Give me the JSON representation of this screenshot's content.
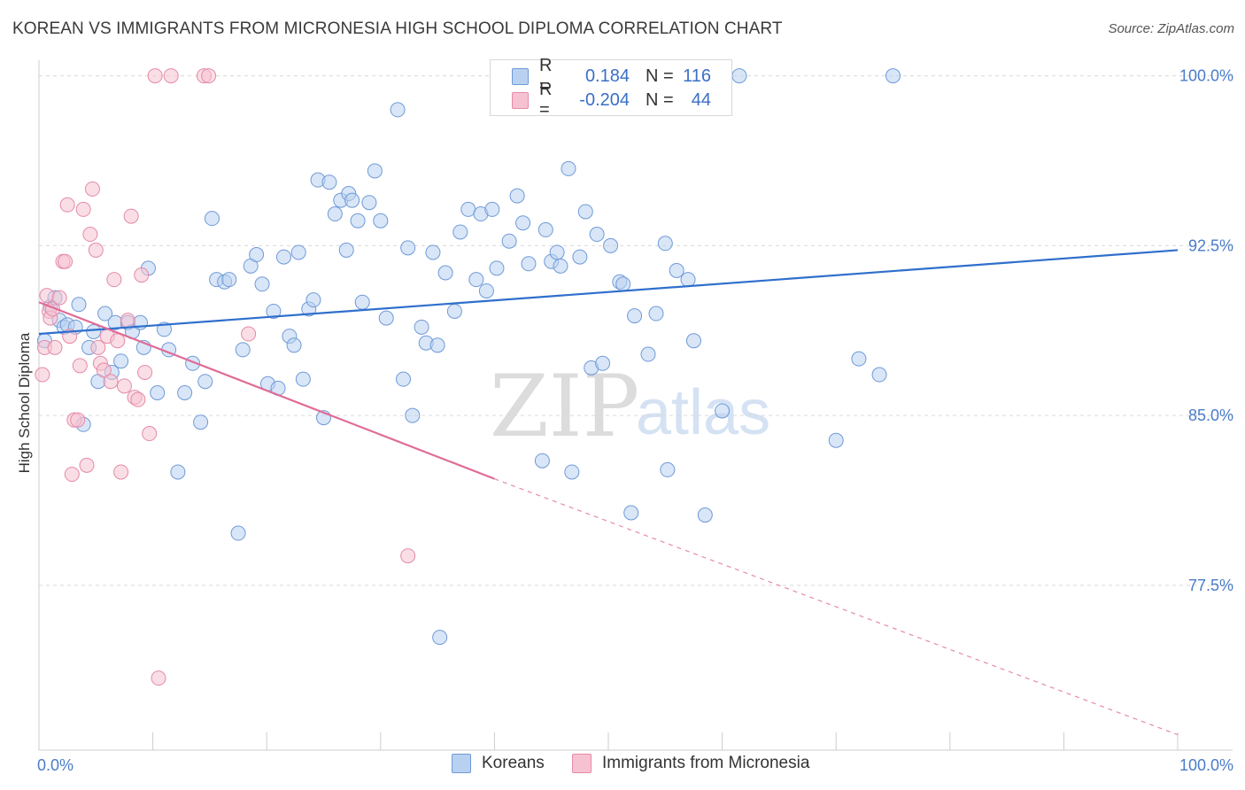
{
  "header": {
    "title": "KOREAN VS IMMIGRANTS FROM MICRONESIA HIGH SCHOOL DIPLOMA CORRELATION CHART",
    "source": "Source: ZipAtlas.com"
  },
  "watermark": {
    "zip": "ZIP",
    "atlas": "atlas"
  },
  "colors": {
    "koreans_fill": "#b9d1f0",
    "koreans_stroke": "#6f9ad8",
    "koreans_line": "#2f6fcc",
    "micronesia_fill": "#f6c2d1",
    "micronesia_stroke": "#e58aa8",
    "micronesia_line": "#e06b97",
    "axis_label": "#4a7cc9",
    "grid": "#d9d9d9"
  },
  "legend_top": [
    {
      "r_label": "R =",
      "r_value": "0.184",
      "n_label": "N =",
      "n_value": "116"
    },
    {
      "r_label": "R =",
      "r_value": "-0.204",
      "n_label": "N =",
      "n_value": "44"
    }
  ],
  "legend_bottom": [
    "Koreans",
    "Immigrants from Micronesia"
  ],
  "chart_data": {
    "type": "scatter",
    "title": "KOREAN VS IMMIGRANTS FROM MICRONESIA HIGH SCHOOL DIPLOMA CORRELATION CHART",
    "xlabel": "",
    "ylabel": "High School Diploma",
    "xlim": [
      0,
      100
    ],
    "ylim": [
      71.0,
      101.0
    ],
    "x_tick_labels": [
      "0.0%",
      "100.0%"
    ],
    "y_ticks": [
      77.5,
      85.0,
      92.5,
      100.0
    ],
    "y_tick_labels": [
      "77.5%",
      "85.0%",
      "92.5%",
      "100.0%"
    ],
    "grid": "horizontal dashed",
    "legend_position": "bottom",
    "series": [
      {
        "name": "Koreans",
        "R": 0.184,
        "N": 116,
        "trend": {
          "x": [
            0,
            100
          ],
          "y": [
            88.6,
            92.3
          ],
          "style": "solid"
        },
        "points": [
          [
            0.5,
            88.3
          ],
          [
            1,
            89.8
          ],
          [
            1.4,
            90.2
          ],
          [
            1.8,
            89.2
          ],
          [
            2.2,
            88.9
          ],
          [
            2.5,
            89.0
          ],
          [
            3.2,
            88.9
          ],
          [
            3.5,
            89.9
          ],
          [
            3.9,
            84.6
          ],
          [
            4.4,
            88.0
          ],
          [
            4.8,
            88.7
          ],
          [
            5.2,
            86.5
          ],
          [
            5.8,
            89.5
          ],
          [
            6.4,
            86.9
          ],
          [
            6.7,
            89.1
          ],
          [
            7.2,
            87.4
          ],
          [
            7.8,
            89.1
          ],
          [
            8.2,
            88.7
          ],
          [
            8.9,
            89.1
          ],
          [
            9.2,
            88.0
          ],
          [
            9.6,
            91.5
          ],
          [
            10.4,
            86.0
          ],
          [
            11.0,
            88.8
          ],
          [
            11.4,
            87.9
          ],
          [
            12.2,
            82.5
          ],
          [
            12.8,
            86.0
          ],
          [
            13.5,
            87.3
          ],
          [
            14.2,
            84.7
          ],
          [
            14.6,
            86.5
          ],
          [
            15.2,
            93.7
          ],
          [
            15.6,
            91.0
          ],
          [
            16.3,
            90.9
          ],
          [
            16.7,
            91.0
          ],
          [
            17.5,
            79.8
          ],
          [
            17.9,
            87.9
          ],
          [
            18.6,
            91.6
          ],
          [
            19.1,
            92.1
          ],
          [
            19.6,
            90.8
          ],
          [
            20.1,
            86.4
          ],
          [
            20.6,
            89.6
          ],
          [
            21.0,
            86.2
          ],
          [
            21.5,
            92.0
          ],
          [
            22.0,
            88.5
          ],
          [
            22.4,
            88.1
          ],
          [
            22.8,
            92.2
          ],
          [
            23.2,
            86.6
          ],
          [
            23.7,
            89.7
          ],
          [
            24.1,
            90.1
          ],
          [
            24.5,
            95.4
          ],
          [
            25.0,
            84.9
          ],
          [
            25.5,
            95.3
          ],
          [
            26.0,
            93.9
          ],
          [
            26.5,
            94.5
          ],
          [
            27.0,
            92.3
          ],
          [
            27.2,
            94.8
          ],
          [
            27.5,
            94.5
          ],
          [
            28.0,
            93.6
          ],
          [
            28.4,
            90.0
          ],
          [
            29.0,
            94.4
          ],
          [
            29.5,
            95.8
          ],
          [
            30.0,
            93.6
          ],
          [
            30.5,
            89.3
          ],
          [
            31.5,
            98.5
          ],
          [
            32.0,
            86.6
          ],
          [
            32.4,
            92.4
          ],
          [
            32.8,
            85.0
          ],
          [
            33.6,
            88.9
          ],
          [
            34.0,
            88.2
          ],
          [
            34.6,
            92.2
          ],
          [
            35.0,
            88.1
          ],
          [
            35.7,
            91.3
          ],
          [
            36.5,
            89.6
          ],
          [
            37.0,
            93.1
          ],
          [
            37.7,
            94.1
          ],
          [
            38.4,
            91.0
          ],
          [
            38.8,
            93.9
          ],
          [
            39.3,
            90.5
          ],
          [
            39.8,
            94.1
          ],
          [
            40.2,
            91.5
          ],
          [
            41.0,
            99.9
          ],
          [
            41.3,
            92.7
          ],
          [
            42.0,
            94.7
          ],
          [
            42.5,
            93.5
          ],
          [
            43.0,
            91.7
          ],
          [
            44.2,
            83.0
          ],
          [
            44.5,
            93.2
          ],
          [
            45.0,
            91.8
          ],
          [
            45.5,
            92.2
          ],
          [
            45.8,
            91.6
          ],
          [
            46.5,
            95.9
          ],
          [
            46.8,
            82.5
          ],
          [
            47.5,
            92.0
          ],
          [
            48.0,
            94.0
          ],
          [
            48.5,
            87.1
          ],
          [
            49.0,
            93.0
          ],
          [
            49.5,
            87.3
          ],
          [
            50.2,
            92.5
          ],
          [
            51.0,
            90.9
          ],
          [
            51.3,
            90.8
          ],
          [
            52.0,
            80.7
          ],
          [
            52.3,
            89.4
          ],
          [
            53.5,
            87.7
          ],
          [
            54.2,
            89.5
          ],
          [
            55.0,
            92.6
          ],
          [
            55.2,
            82.6
          ],
          [
            56.0,
            91.4
          ],
          [
            57.0,
            91.0
          ],
          [
            57.5,
            88.3
          ],
          [
            58.5,
            80.6
          ],
          [
            60.0,
            85.2
          ],
          [
            61.5,
            100.0
          ],
          [
            70.0,
            83.9
          ],
          [
            72.0,
            87.5
          ],
          [
            73.8,
            86.8
          ],
          [
            75.0,
            100.0
          ],
          [
            35.2,
            75.2
          ]
        ]
      },
      {
        "name": "Immigrants from Micronesia",
        "R": -0.204,
        "N": 44,
        "trend": {
          "x": [
            0,
            40
          ],
          "y": [
            90.0,
            82.2
          ],
          "style": "solid",
          "extension": {
            "x": [
              40,
              100
            ],
            "y": [
              82.2,
              70.9
            ],
            "style": "dashed"
          }
        },
        "points": [
          [
            0.3,
            86.8
          ],
          [
            0.5,
            88.0
          ],
          [
            0.7,
            90.3
          ],
          [
            0.9,
            89.6
          ],
          [
            1.0,
            89.3
          ],
          [
            1.2,
            89.7
          ],
          [
            1.4,
            88.0
          ],
          [
            1.8,
            90.2
          ],
          [
            2.1,
            91.8
          ],
          [
            2.3,
            91.8
          ],
          [
            2.5,
            94.3
          ],
          [
            2.7,
            88.5
          ],
          [
            2.9,
            82.4
          ],
          [
            3.1,
            84.8
          ],
          [
            3.4,
            84.8
          ],
          [
            3.6,
            87.2
          ],
          [
            3.9,
            94.1
          ],
          [
            4.2,
            82.8
          ],
          [
            4.5,
            93.0
          ],
          [
            4.7,
            95.0
          ],
          [
            5.0,
            92.3
          ],
          [
            5.2,
            88.0
          ],
          [
            5.4,
            87.3
          ],
          [
            5.7,
            87.0
          ],
          [
            6.0,
            88.5
          ],
          [
            6.3,
            86.5
          ],
          [
            6.6,
            91.0
          ],
          [
            6.9,
            88.3
          ],
          [
            7.2,
            82.5
          ],
          [
            7.5,
            86.3
          ],
          [
            7.8,
            89.2
          ],
          [
            8.1,
            93.8
          ],
          [
            8.4,
            85.8
          ],
          [
            8.7,
            85.7
          ],
          [
            9.0,
            91.2
          ],
          [
            9.3,
            86.9
          ],
          [
            9.7,
            84.2
          ],
          [
            10.2,
            100.0
          ],
          [
            11.6,
            100.0
          ],
          [
            14.5,
            100.0
          ],
          [
            14.9,
            100.0
          ],
          [
            10.5,
            73.4
          ],
          [
            18.4,
            88.6
          ],
          [
            32.4,
            78.8
          ]
        ]
      }
    ]
  }
}
